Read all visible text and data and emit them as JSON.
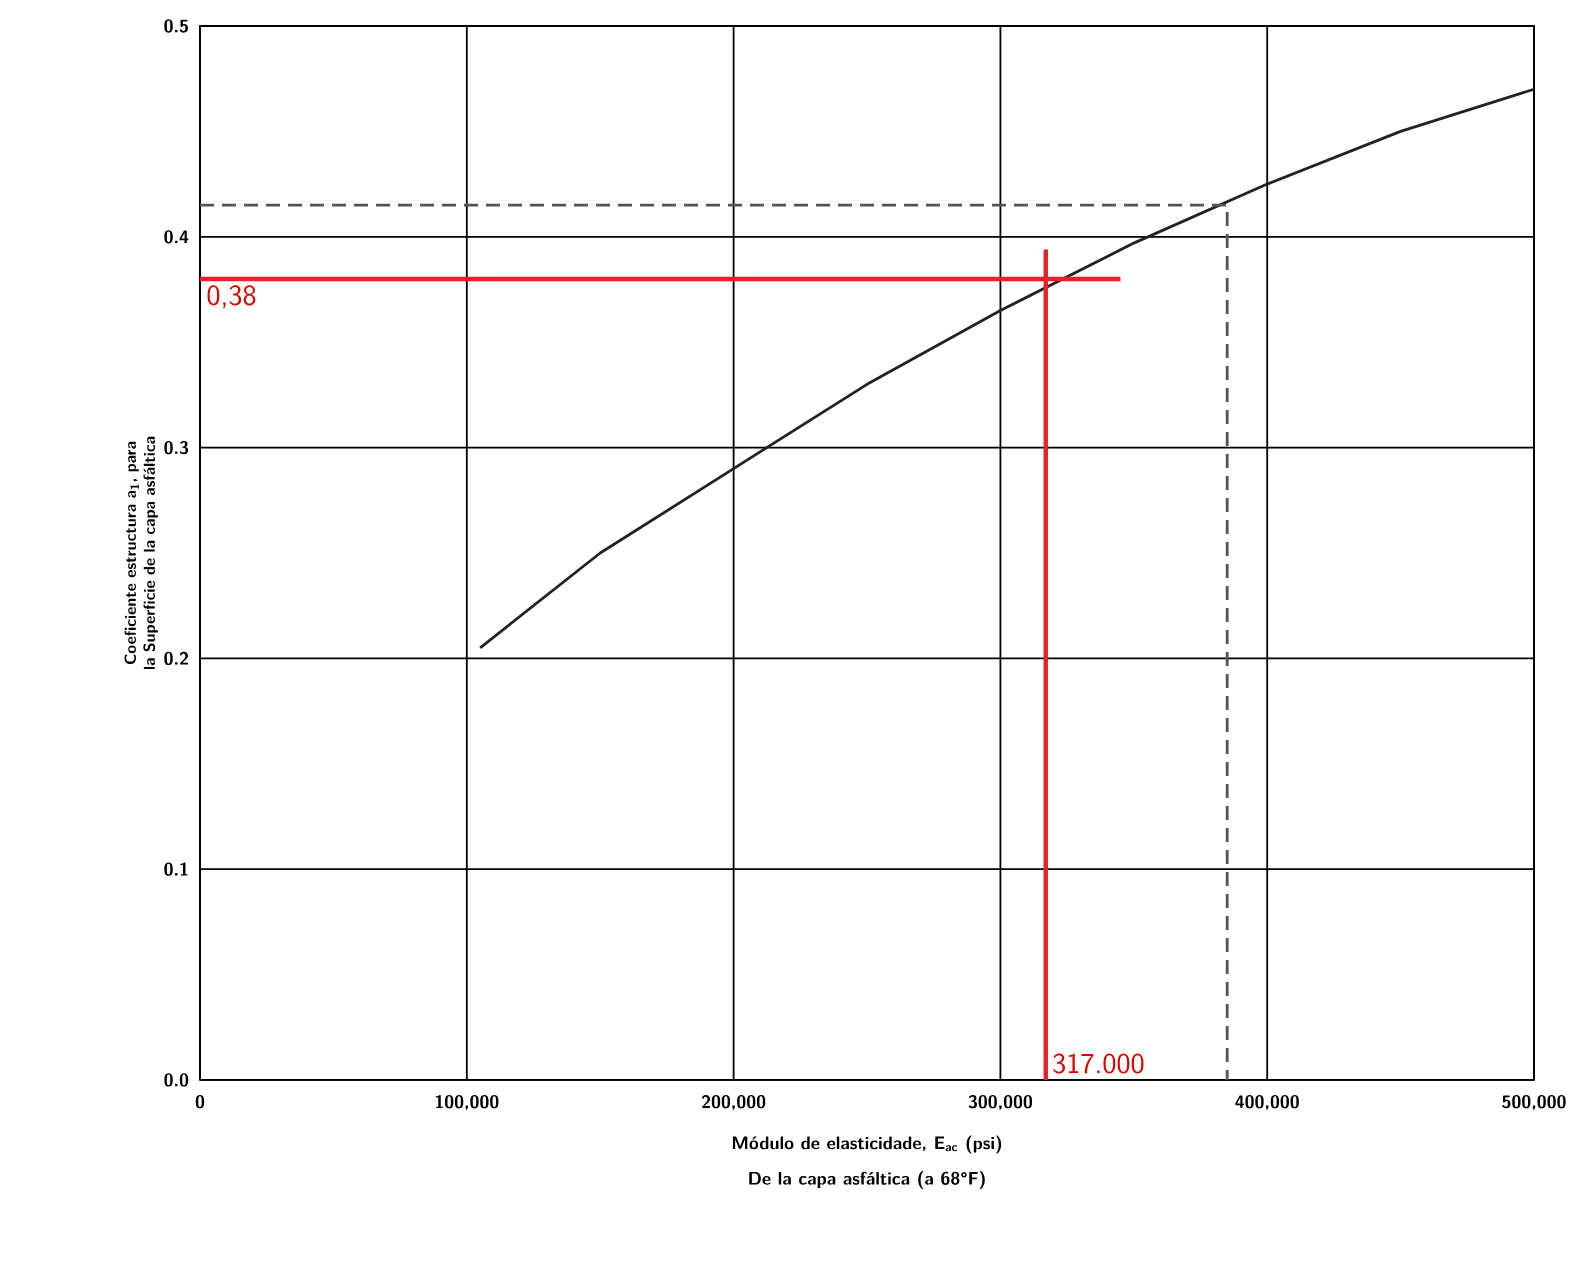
{
  "chart_data": {
    "type": "line",
    "xlabel": "Módulo de elasticidade, E$_{ac}$ (psi)",
    "ylabel": "Coeficiente estructura a$_{1}$, para la Superficie de la capa asfáltica",
    "xlim": [
      0,
      500000
    ],
    "ylim": [
      0,
      0.5
    ],
    "xticks": [
      0,
      {
        "value": 100000,
        "label": "100,000"
      },
      {
        "value": 200000,
        "label": "200,000"
      },
      {
        "value": 300000,
        "label": "300,000"
      },
      {
        "value": 400000,
        "label": "400,000"
      },
      {
        "value": 500000,
        "label": "500,000"
      }
    ],
    "yticks": [
      {
        "value": 0,
        "label": "0.0"
      },
      0.1,
      0.2,
      0.3,
      0.4,
      0.5
    ],
    "grid": true,
    "series": [
      {
        "color": "#222222",
        "line_style": "solid",
        "x": [
          105000,
          150000,
          200000,
          250000,
          300000,
          350000,
          400000,
          450000,
          500000
        ],
        "values": [
          0.205,
          0.25,
          0.29,
          0.33,
          0.365,
          0.397,
          0.425,
          0.45,
          0.47
        ]
      },
      {
        "color": "#555555",
        "line_style": "dashed",
        "x": [
          0,
          385000,
          385000
        ],
        "values": [
          0.415,
          0.415,
          0
        ]
      },
      {
        "color": "#e8202a",
        "line_style": "solid",
        "x": [
          0,
          345000
        ],
        "values": [
          0.38,
          0.38
        ]
      },
      {
        "color": "#e8202a",
        "line_style": "solid",
        "x": [
          317000,
          317000
        ],
        "values": [
          0,
          0.394
        ]
      }
    ],
    "annotations": [
      {
        "text": "0,38",
        "x": 0,
        "y": 0.38
      },
      {
        "text": "317.000",
        "x": 317000,
        "y": 0
      },
      "De la capa asfáltica (a 68°F)"
    ]
  }
}
